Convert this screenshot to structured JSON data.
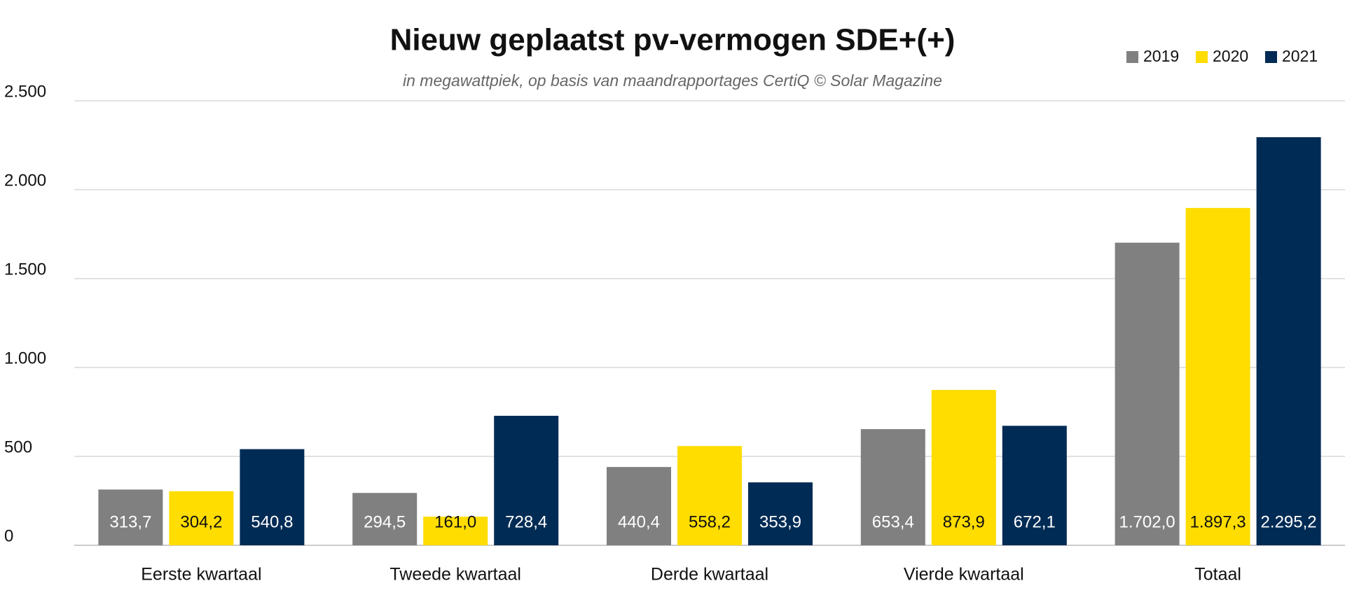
{
  "chart_data": {
    "type": "bar",
    "title": "Nieuw geplaatst pv-vermogen SDE+(+)",
    "subtitle": "in megawattpiek, op basis van maandrapportages CertiQ © Solar Magazine",
    "categories": [
      "Eerste kwartaal",
      "Tweede kwartaal",
      "Derde kwartaal",
      "Vierde kwartaal",
      "Totaal"
    ],
    "series": [
      {
        "name": "2019",
        "color": "#808080",
        "values": [
          313.7,
          294.5,
          440.4,
          653.4,
          1702.0
        ],
        "value_labels": [
          "313,7",
          "294,5",
          "440,4",
          "653,4",
          "1.702,0"
        ]
      },
      {
        "name": "2020",
        "color": "#FFDD00",
        "values": [
          304.2,
          161.0,
          558.2,
          873.9,
          1897.3
        ],
        "value_labels": [
          "304,2",
          "161,0",
          "558,2",
          "873,9",
          "1.897,3"
        ]
      },
      {
        "name": "2021",
        "color": "#002B55",
        "values": [
          540.8,
          728.4,
          353.9,
          672.1,
          2295.2
        ],
        "value_labels": [
          "540,8",
          "728,4",
          "353,9",
          "672,1",
          "2.295,2"
        ]
      }
    ],
    "ylim": [
      0,
      2500
    ],
    "yticks": [
      0,
      500,
      {
        "value": 1000,
        "label": "1.000"
      },
      {
        "value": 1500,
        "label": "1.500"
      },
      {
        "value": 2000,
        "label": "2.000"
      },
      {
        "value": 2500,
        "label": "2.500"
      }
    ],
    "grid": true,
    "legend": "top-right"
  }
}
